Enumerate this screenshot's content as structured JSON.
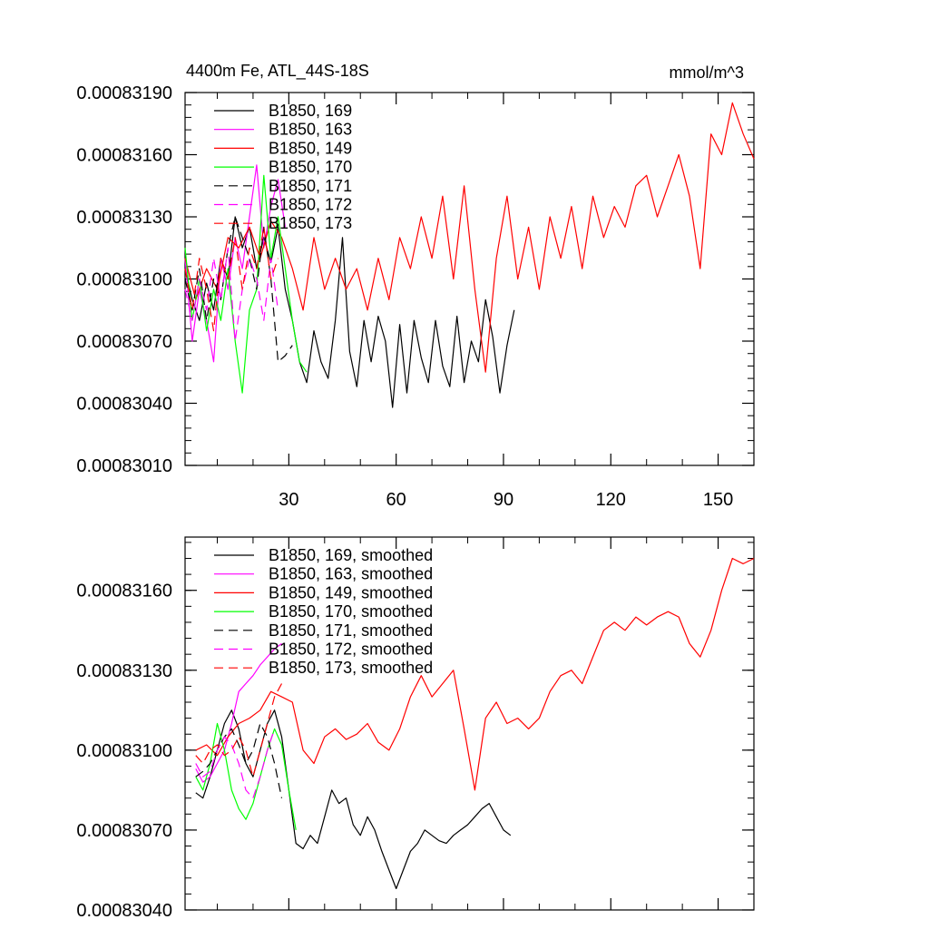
{
  "chart_data": [
    {
      "type": "line",
      "title": "4400m Fe, ATL_44S-18S",
      "units": "mmol/m^3",
      "xlabel": "",
      "ylabel": "",
      "xlim": [
        1,
        160
      ],
      "ylim": [
        0.0008301,
        0.0008319
      ],
      "xticks": [
        30,
        60,
        90,
        120,
        150
      ],
      "xtick_labels": [
        "30",
        "60",
        "90",
        "120",
        "150"
      ],
      "yticks": [
        0.0008301,
        0.0008304,
        0.0008307,
        0.000831,
        0.0008313,
        0.0008316,
        0.0008319
      ],
      "ytick_labels": [
        "0.00083010",
        "0.00083040",
        "0.00083070",
        "0.00083100",
        "0.00083130",
        "0.00083160",
        "0.00083190"
      ],
      "grid": false,
      "legend_position": "top-left",
      "series": [
        {
          "name": "B1850, 169",
          "color": "#000000",
          "dash": "solid",
          "x": [
            1,
            3,
            5,
            7,
            9,
            11,
            13,
            15,
            17,
            19,
            21,
            23,
            25,
            27,
            29,
            31,
            33,
            35,
            37,
            39,
            41,
            43,
            45,
            47,
            49,
            51,
            53,
            55,
            57,
            59,
            61,
            63,
            65,
            67,
            69,
            71,
            73,
            75,
            77,
            79,
            81,
            83,
            85,
            87,
            89,
            91,
            93
          ],
          "y": [
            0.00083105,
            0.0008309,
            0.0008308,
            0.00083098,
            0.00083085,
            0.0008311,
            0.000831,
            0.0008313,
            0.00083115,
            0.00083125,
            0.00083105,
            0.0008312,
            0.00083108,
            0.00083125,
            0.00083095,
            0.0008308,
            0.0008306,
            0.0008305,
            0.00083075,
            0.0008306,
            0.00083052,
            0.0008308,
            0.0008312,
            0.00083065,
            0.00083048,
            0.0008308,
            0.0008306,
            0.00083082,
            0.0008307,
            0.00083038,
            0.00083078,
            0.00083045,
            0.0008308,
            0.00083062,
            0.0008305,
            0.0008308,
            0.00083058,
            0.00083048,
            0.00083082,
            0.0008305,
            0.0008307,
            0.0008306,
            0.0008309,
            0.00083072,
            0.00083045,
            0.00083068,
            0.00083085
          ]
        },
        {
          "name": "B1850, 163",
          "color": "#ff00ff",
          "dash": "solid",
          "x": [
            1,
            3,
            5,
            7,
            9,
            11,
            13,
            15,
            17,
            19,
            21,
            23,
            25,
            27,
            29
          ],
          "y": [
            0.0008311,
            0.0008307,
            0.00083095,
            0.0008308,
            0.0008306,
            0.0008311,
            0.00083095,
            0.0008312,
            0.00083105,
            0.0008313,
            0.00083155,
            0.00083115,
            0.00083135,
            0.00083148,
            0.00083125
          ]
        },
        {
          "name": "B1850, 149",
          "color": "#ff0000",
          "dash": "solid",
          "x": [
            1,
            4,
            7,
            10,
            13,
            16,
            19,
            22,
            25,
            28,
            31,
            34,
            37,
            40,
            43,
            46,
            49,
            52,
            55,
            58,
            61,
            64,
            67,
            70,
            73,
            76,
            79,
            82,
            85,
            88,
            91,
            94,
            97,
            100,
            103,
            106,
            109,
            112,
            115,
            118,
            121,
            124,
            127,
            130,
            133,
            136,
            139,
            142,
            145,
            148,
            151,
            154,
            157,
            160
          ],
          "y": [
            0.0008311,
            0.0008309,
            0.00083105,
            0.00083095,
            0.0008312,
            0.00083115,
            0.00083125,
            0.0008311,
            0.00083128,
            0.0008312,
            0.00083105,
            0.00083085,
            0.0008312,
            0.00083095,
            0.0008311,
            0.00083095,
            0.00083105,
            0.00083085,
            0.0008311,
            0.0008309,
            0.0008312,
            0.00083105,
            0.0008313,
            0.0008311,
            0.0008314,
            0.000831,
            0.00083145,
            0.00083095,
            0.00083055,
            0.0008311,
            0.0008314,
            0.000831,
            0.00083125,
            0.00083095,
            0.0008313,
            0.0008311,
            0.00083135,
            0.00083105,
            0.0008314,
            0.0008312,
            0.00083135,
            0.00083125,
            0.00083145,
            0.0008315,
            0.0008313,
            0.00083145,
            0.0008316,
            0.0008314,
            0.00083105,
            0.0008317,
            0.0008316,
            0.00083185,
            0.0008317,
            0.00083158
          ]
        },
        {
          "name": "B1850, 170",
          "color": "#00ff00",
          "dash": "solid",
          "x": [
            1,
            3,
            5,
            7,
            9,
            11,
            13,
            15,
            17,
            19,
            21,
            23,
            25,
            27,
            29,
            31,
            33,
            35
          ],
          "y": [
            0.00083115,
            0.0008308,
            0.000831,
            0.00083075,
            0.00083095,
            0.0008308,
            0.00083105,
            0.0008307,
            0.00083045,
            0.00083085,
            0.00083095,
            0.0008315,
            0.0008311,
            0.0008313,
            0.00083105,
            0.0008308,
            0.0008306,
            0.00083055
          ]
        },
        {
          "name": "B1850, 171",
          "color": "#000000",
          "dash": "longdash",
          "x": [
            1,
            3,
            5,
            7,
            9,
            11,
            13,
            15,
            17,
            19,
            21,
            23,
            25,
            27,
            29,
            31
          ],
          "y": [
            0.000831,
            0.00083085,
            0.00083105,
            0.0008308,
            0.000831,
            0.0008309,
            0.00083115,
            0.0008313,
            0.0008312,
            0.0008311,
            0.00083095,
            0.00083125,
            0.000831,
            0.0008306,
            0.00083063,
            0.00083068
          ]
        },
        {
          "name": "B1850, 172",
          "color": "#ff00ff",
          "dash": "longdash",
          "x": [
            1,
            3,
            5,
            7,
            9,
            11,
            13,
            15,
            17,
            19,
            21,
            23,
            25,
            27
          ],
          "y": [
            0.00083095,
            0.0008308,
            0.000831,
            0.00083085,
            0.0008311,
            0.0008309,
            0.00083115,
            0.0008307,
            0.00083095,
            0.0008311,
            0.000831,
            0.0008308,
            0.0008311,
            0.00083085
          ]
        },
        {
          "name": "B1850, 173",
          "color": "#ff0000",
          "dash": "longdash",
          "x": [
            1,
            3,
            5,
            7,
            9,
            11,
            13,
            15,
            17,
            19,
            21,
            23,
            25,
            27
          ],
          "y": [
            0.00083105,
            0.00083085,
            0.0008311,
            0.00083095,
            0.00083075,
            0.0008311,
            0.000831,
            0.0008312,
            0.00083095,
            0.00083115,
            0.00083105,
            0.00083125,
            0.000831,
            0.0008311
          ]
        }
      ]
    },
    {
      "type": "line",
      "title": "",
      "units": "",
      "xlabel": "",
      "ylabel": "",
      "xlim": [
        1,
        160
      ],
      "ylim": [
        0.0008304,
        0.0008318
      ],
      "xticks": [
        30,
        60,
        90,
        120,
        150
      ],
      "xtick_labels": [],
      "yticks": [
        0.0008304,
        0.0008307,
        0.000831,
        0.0008313,
        0.0008316
      ],
      "ytick_labels": [
        "0.00083040",
        "0.00083070",
        "0.00083100",
        "0.00083130",
        "0.00083160"
      ],
      "grid": false,
      "legend_position": "top-left",
      "series": [
        {
          "name": "B1850, 169, smoothed",
          "color": "#000000",
          "dash": "solid",
          "x": [
            4,
            6,
            8,
            10,
            12,
            14,
            16,
            18,
            20,
            22,
            24,
            26,
            28,
            30,
            32,
            34,
            36,
            38,
            40,
            42,
            44,
            46,
            48,
            50,
            52,
            54,
            56,
            58,
            60,
            62,
            64,
            66,
            68,
            70,
            72,
            74,
            76,
            78,
            80,
            82,
            84,
            86,
            88,
            90,
            92
          ],
          "y": [
            0.00083084,
            0.00083082,
            0.0008309,
            0.000831,
            0.0008311,
            0.00083115,
            0.00083108,
            0.00083095,
            0.0008309,
            0.000831,
            0.0008311,
            0.00083115,
            0.00083105,
            0.00083085,
            0.00083065,
            0.00083063,
            0.00083068,
            0.00083065,
            0.00083075,
            0.00083085,
            0.0008308,
            0.00083082,
            0.00083072,
            0.00083068,
            0.00083075,
            0.0008307,
            0.00083062,
            0.00083055,
            0.00083048,
            0.00083055,
            0.00083062,
            0.00083065,
            0.0008307,
            0.00083068,
            0.00083066,
            0.00083065,
            0.00083068,
            0.0008307,
            0.00083072,
            0.00083075,
            0.00083078,
            0.0008308,
            0.00083075,
            0.0008307,
            0.00083068
          ]
        },
        {
          "name": "B1850, 163, smoothed",
          "color": "#ff00ff",
          "dash": "solid",
          "x": [
            4,
            6,
            8,
            10,
            12,
            14,
            16,
            18,
            20,
            22,
            24,
            26,
            28
          ],
          "y": [
            0.00083093,
            0.00083088,
            0.0008309,
            0.00083095,
            0.000831,
            0.0008311,
            0.00083122,
            0.00083125,
            0.00083128,
            0.00083132,
            0.00083135,
            0.00083138,
            0.0008314
          ]
        },
        {
          "name": "B1850, 149, smoothed",
          "color": "#ff0000",
          "dash": "solid",
          "x": [
            4,
            7,
            10,
            13,
            16,
            19,
            22,
            25,
            28,
            31,
            34,
            37,
            40,
            43,
            46,
            49,
            52,
            55,
            58,
            61,
            64,
            67,
            70,
            73,
            76,
            79,
            82,
            85,
            88,
            91,
            94,
            97,
            100,
            103,
            106,
            109,
            112,
            115,
            118,
            121,
            124,
            127,
            130,
            133,
            136,
            139,
            142,
            145,
            148,
            151,
            154,
            157,
            160
          ],
          "y": [
            0.000831,
            0.00083102,
            0.00083098,
            0.00083105,
            0.0008311,
            0.00083112,
            0.00083115,
            0.00083122,
            0.0008312,
            0.00083118,
            0.000831,
            0.00083095,
            0.00083105,
            0.00083108,
            0.00083104,
            0.00083106,
            0.0008311,
            0.00083103,
            0.000831,
            0.00083108,
            0.0008312,
            0.00083128,
            0.0008312,
            0.00083125,
            0.0008313,
            0.00083108,
            0.00083085,
            0.00083112,
            0.00083118,
            0.0008311,
            0.00083112,
            0.00083108,
            0.00083112,
            0.00083122,
            0.00083128,
            0.0008313,
            0.00083125,
            0.00083135,
            0.00083145,
            0.00083148,
            0.00083145,
            0.0008315,
            0.00083147,
            0.0008315,
            0.00083152,
            0.0008315,
            0.0008314,
            0.00083135,
            0.00083145,
            0.0008316,
            0.00083172,
            0.0008317,
            0.00083172
          ]
        },
        {
          "name": "B1850, 170, smoothed",
          "color": "#00ff00",
          "dash": "solid",
          "x": [
            4,
            6,
            8,
            10,
            12,
            14,
            16,
            18,
            20,
            22,
            24,
            26,
            28,
            30,
            32
          ],
          "y": [
            0.0008309,
            0.00083085,
            0.00083095,
            0.0008311,
            0.000831,
            0.00083085,
            0.00083078,
            0.00083074,
            0.0008308,
            0.0008309,
            0.000831,
            0.00083108,
            0.00083102,
            0.00083085,
            0.0008307
          ]
        },
        {
          "name": "B1850, 171, smoothed",
          "color": "#000000",
          "dash": "longdash",
          "x": [
            4,
            6,
            8,
            10,
            12,
            14,
            16,
            18,
            20,
            22,
            24,
            26,
            28
          ],
          "y": [
            0.0008309,
            0.00083092,
            0.00083095,
            0.000831,
            0.00083105,
            0.00083108,
            0.00083102,
            0.00083095,
            0.000831,
            0.0008311,
            0.00083105,
            0.00083095,
            0.00083082
          ]
        },
        {
          "name": "B1850, 172, smoothed",
          "color": "#ff00ff",
          "dash": "longdash",
          "x": [
            4,
            6,
            8,
            10,
            12,
            14,
            16,
            18,
            20,
            22,
            24,
            26
          ],
          "y": [
            0.00083095,
            0.0008309,
            0.00083092,
            0.000831,
            0.00083105,
            0.00083102,
            0.00083095,
            0.00083085,
            0.00083082,
            0.0008309,
            0.000831,
            0.00083108
          ]
        },
        {
          "name": "B1850, 173, smoothed",
          "color": "#ff0000",
          "dash": "longdash",
          "x": [
            4,
            6,
            8,
            10,
            12,
            14,
            16,
            18,
            20,
            22,
            24,
            26,
            28
          ],
          "y": [
            0.00083098,
            0.00083095,
            0.000831,
            0.00083102,
            0.00083098,
            0.000831,
            0.00083105,
            0.000831,
            0.0008309,
            0.000831,
            0.0008311,
            0.0008312,
            0.00083125
          ]
        }
      ]
    }
  ]
}
